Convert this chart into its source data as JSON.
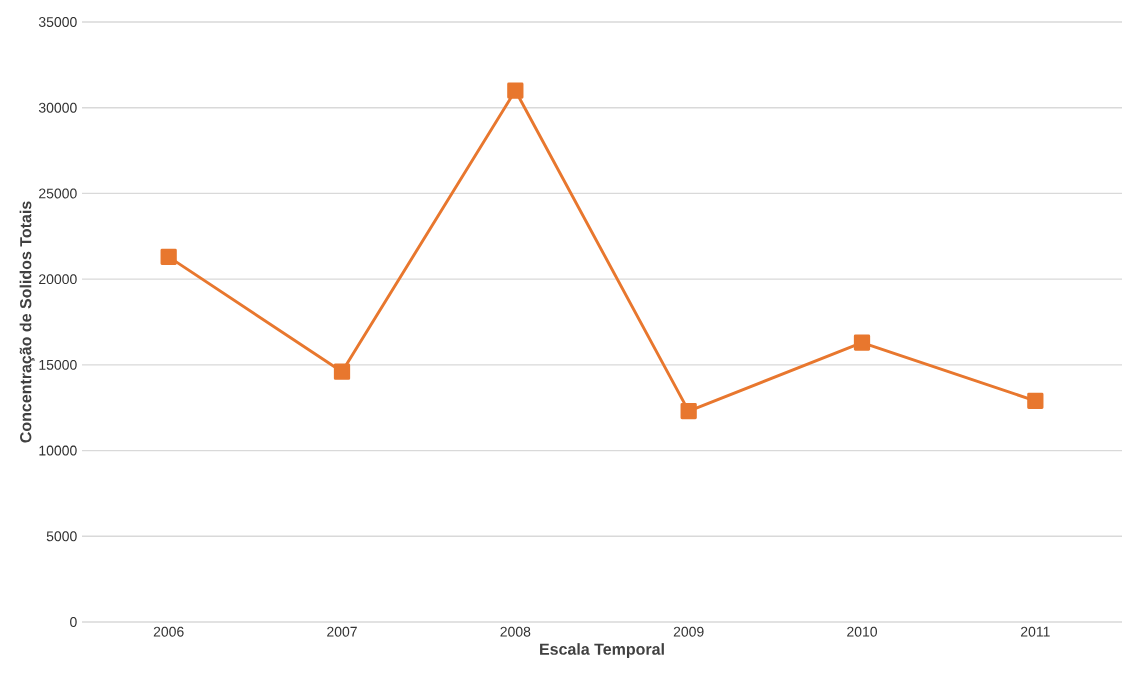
{
  "chart_data": {
    "type": "line",
    "xlabel": "Escala Temporal",
    "ylabel": "Concentração de Solidos Totais",
    "categories": [
      "2006",
      "2007",
      "2008",
      "2009",
      "2010",
      "2011"
    ],
    "series": [
      {
        "color": "#e8772e",
        "values": [
          21300,
          14600,
          31000,
          12300,
          16300,
          12900
        ]
      }
    ],
    "ylim": [
      0,
      35000
    ],
    "yticks": [
      0,
      5000,
      10000,
      15000,
      20000,
      25000,
      30000,
      35000
    ],
    "grid": "y",
    "marker": "square",
    "line_style": "solid"
  }
}
